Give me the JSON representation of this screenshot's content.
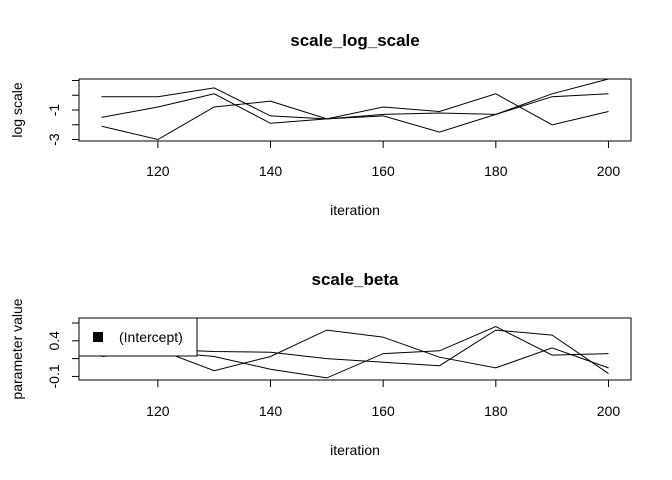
{
  "chart_data": [
    {
      "type": "line",
      "title": "scale_log_scale",
      "xlabel": "iteration",
      "ylabel": "log scale",
      "xlim": [
        106,
        204
      ],
      "ylim": [
        -3.1,
        1.1
      ],
      "x_ticks": [
        120,
        140,
        160,
        180,
        200
      ],
      "y_ticks": [
        -3,
        -1
      ],
      "y_tick_labels": [
        "-3",
        "-1"
      ],
      "x": [
        110,
        120,
        130,
        140,
        150,
        160,
        170,
        180,
        190,
        200
      ],
      "series": [
        {
          "values": [
            -0.1,
            -0.1,
            0.5,
            -1.4,
            -1.6,
            -1.3,
            -1.2,
            -1.3,
            0.1,
            1.1
          ]
        },
        {
          "values": [
            -1.5,
            -0.8,
            0.1,
            -1.9,
            -1.6,
            -0.8,
            -1.1,
            0.1,
            -2.0,
            -1.1
          ]
        },
        {
          "values": [
            -2.1,
            -3.0,
            -0.8,
            -0.4,
            -1.6,
            -1.4,
            -2.5,
            -1.3,
            -0.1,
            0.1
          ]
        }
      ]
    },
    {
      "type": "line",
      "title": "scale_beta",
      "xlabel": "iteration",
      "ylabel": "parameter value",
      "xlim": [
        106,
        204
      ],
      "ylim": [
        -0.15,
        0.72
      ],
      "x_ticks": [
        120,
        140,
        160,
        180,
        200
      ],
      "y_ticks": [
        -0.1,
        0.4
      ],
      "y_tick_labels": [
        "-0.1",
        "0.4"
      ],
      "x": [
        110,
        120,
        130,
        140,
        150,
        160,
        170,
        180,
        190,
        200
      ],
      "legend": {
        "entries": [
          "(Intercept)"
        ],
        "position": "top-left"
      },
      "series": [
        {
          "values": [
            0.25,
            0.28,
            0.25,
            0.24,
            0.15,
            0.1,
            0.05,
            0.55,
            0.48,
            -0.06
          ]
        },
        {
          "values": [
            0.22,
            0.28,
            -0.02,
            0.18,
            0.55,
            0.45,
            0.17,
            0.02,
            0.3,
            0.02
          ]
        },
        {
          "values": [
            0.18,
            0.25,
            0.18,
            0.0,
            -0.12,
            0.22,
            0.26,
            0.6,
            0.2,
            0.22
          ]
        }
      ]
    }
  ]
}
